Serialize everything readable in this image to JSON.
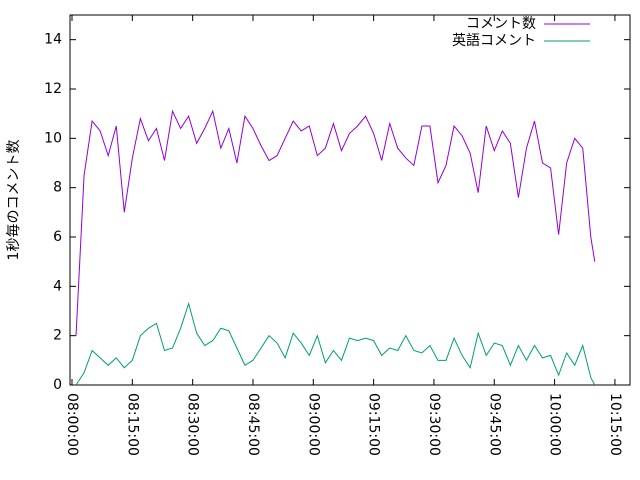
{
  "chart_data": {
    "type": "line",
    "ylabel": "1秒毎のコメント数",
    "x": [
      "08:01:00",
      "08:03:00",
      "08:05:00",
      "08:07:00",
      "08:09:00",
      "08:11:00",
      "08:13:00",
      "08:15:00",
      "08:17:00",
      "08:19:00",
      "08:21:00",
      "08:23:00",
      "08:25:00",
      "08:27:00",
      "08:29:00",
      "08:31:00",
      "08:33:00",
      "08:35:00",
      "08:37:00",
      "08:39:00",
      "08:41:00",
      "08:43:00",
      "08:45:00",
      "08:47:00",
      "08:49:00",
      "08:51:00",
      "08:53:00",
      "08:55:00",
      "08:57:00",
      "08:59:00",
      "09:01:00",
      "09:03:00",
      "09:05:00",
      "09:07:00",
      "09:09:00",
      "09:11:00",
      "09:13:00",
      "09:15:00",
      "09:17:00",
      "09:19:00",
      "09:21:00",
      "09:23:00",
      "09:25:00",
      "09:27:00",
      "09:29:00",
      "09:31:00",
      "09:33:00",
      "09:35:00",
      "09:37:00",
      "09:39:00",
      "09:41:00",
      "09:43:00",
      "09:45:00",
      "09:47:00",
      "09:49:00",
      "09:51:00",
      "09:53:00",
      "09:55:00",
      "09:57:00",
      "09:59:00",
      "10:01:00",
      "10:03:00",
      "10:05:00",
      "10:07:00",
      "10:09:00",
      "10:10:00"
    ],
    "series": [
      {
        "name": "コメント数",
        "color": "#9400d3",
        "values": [
          2,
          8.5,
          10.7,
          10.3,
          9.3,
          10.5,
          7,
          9.2,
          10.8,
          9.9,
          10.4,
          9.1,
          11.1,
          10.4,
          10.9,
          9.8,
          10.4,
          11.1,
          9.6,
          10.4,
          9,
          10.9,
          10.4,
          9.7,
          9.1,
          9.3,
          10,
          10.7,
          10.3,
          10.5,
          9.3,
          9.6,
          10.6,
          9.5,
          10.2,
          10.5,
          10.9,
          10.2,
          9.1,
          10.6,
          9.6,
          9.2,
          8.9,
          10.5,
          10.5,
          8.2,
          8.9,
          10.5,
          10.1,
          9.4,
          7.8,
          10.5,
          9.5,
          10.3,
          9.8,
          7.6,
          9.6,
          10.7,
          9,
          8.8,
          6.1,
          9,
          10,
          9.6,
          6,
          5
        ]
      },
      {
        "name": "英語コメント",
        "color": "#009e73",
        "values": [
          0,
          0.5,
          1.4,
          1.1,
          0.8,
          1.1,
          0.7,
          1,
          2,
          2.3,
          2.5,
          1.4,
          1.5,
          2.3,
          3.3,
          2.1,
          1.6,
          1.8,
          2.3,
          2.2,
          1.5,
          0.8,
          1,
          1.5,
          2,
          1.7,
          1.1,
          2.1,
          1.7,
          1.2,
          2,
          0.9,
          1.4,
          1,
          1.9,
          1.8,
          1.9,
          1.8,
          1.2,
          1.5,
          1.4,
          2,
          1.4,
          1.3,
          1.6,
          1,
          1,
          1.9,
          1.2,
          0.7,
          2.1,
          1.2,
          1.7,
          1.6,
          0.8,
          1.6,
          1,
          1.6,
          1.1,
          1.2,
          0.4,
          1.3,
          0.8,
          1.6,
          0.3,
          0
        ]
      }
    ],
    "xlim": [
      "07:59:30",
      "10:18:45"
    ],
    "xticks": [
      "08:00:00",
      "08:15:00",
      "08:30:00",
      "08:45:00",
      "09:00:00",
      "09:15:00",
      "09:30:00",
      "09:45:00",
      "10:00:00",
      "10:15:00"
    ],
    "ylim": [
      0,
      15
    ],
    "yticks": [
      0,
      2,
      4,
      6,
      8,
      10,
      12,
      14
    ],
    "legend": "upper right",
    "grid": false
  }
}
